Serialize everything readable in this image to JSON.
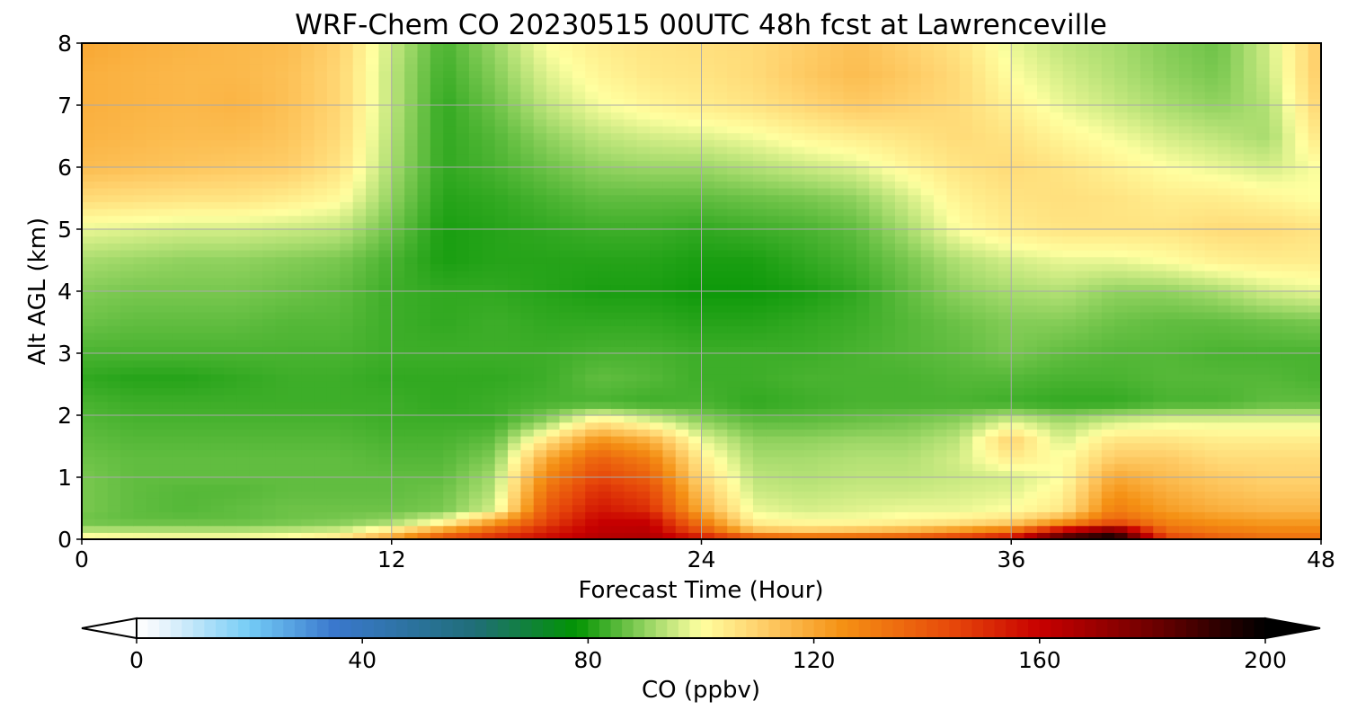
{
  "chart_data": {
    "type": "heatmap",
    "title": "WRF-Chem CO  20230515 00UTC 48h fcst at Lawrenceville",
    "xlabel": "Forecast Time (Hour)",
    "ylabel": "Alt AGL (km)",
    "xlim": [
      0,
      48
    ],
    "ylim": [
      0,
      8
    ],
    "xticks": [
      0,
      12,
      24,
      36,
      48
    ],
    "yticks": [
      0,
      1,
      2,
      3,
      4,
      5,
      6,
      7,
      8
    ],
    "grid": true,
    "colorbar": {
      "label": "CO  (ppbv)",
      "range": [
        0,
        200
      ],
      "ticks": [
        0,
        40,
        80,
        120,
        160,
        200
      ],
      "extend": "both",
      "orientation": "horizontal"
    },
    "x": [
      0,
      2,
      4,
      6,
      8,
      10,
      12,
      14,
      16,
      18,
      20,
      22,
      24,
      26,
      28,
      30,
      32,
      34,
      36,
      38,
      40,
      42,
      44,
      46,
      48
    ],
    "y": [
      0,
      0.1,
      0.3,
      0.5,
      0.8,
      1,
      1.3,
      1.6,
      1.9,
      2.2,
      2.6,
      3,
      3.5,
      4,
      4.5,
      5,
      5.5,
      6,
      6.5,
      7,
      7.5,
      8
    ],
    "z": [
      [
        106,
        104,
        103,
        103,
        104,
        110,
        125,
        146,
        152,
        158,
        165,
        166,
        160,
        154,
        150,
        150,
        152,
        158,
        165,
        190,
        200,
        150,
        140,
        135,
        135
      ],
      [
        95,
        95,
        95,
        95,
        96,
        98,
        110,
        130,
        145,
        155,
        163,
        164,
        145,
        118,
        115,
        118,
        122,
        130,
        140,
        175,
        190,
        138,
        133,
        130,
        130
      ],
      [
        87,
        86,
        86,
        86,
        87,
        88,
        90,
        98,
        120,
        145,
        160,
        160,
        130,
        102,
        100,
        100,
        102,
        104,
        108,
        120,
        138,
        128,
        124,
        122,
        122
      ],
      [
        88,
        86,
        85,
        86,
        87,
        87,
        87,
        88,
        96,
        140,
        155,
        150,
        118,
        98,
        96,
        97,
        98,
        98,
        100,
        105,
        130,
        122,
        118,
        116,
        116
      ],
      [
        88,
        86,
        85,
        85,
        86,
        86,
        86,
        87,
        93,
        133,
        150,
        144,
        112,
        95,
        94,
        95,
        95,
        96,
        97,
        102,
        124,
        118,
        114,
        112,
        112
      ],
      [
        88,
        86,
        86,
        86,
        86,
        86,
        86,
        86,
        92,
        128,
        145,
        138,
        108,
        94,
        93,
        94,
        94,
        95,
        96,
        100,
        120,
        115,
        112,
        110,
        110
      ],
      [
        87,
        86,
        86,
        86,
        86,
        86,
        85,
        85,
        89,
        120,
        138,
        130,
        104,
        92,
        92,
        93,
        93,
        96,
        104,
        100,
        112,
        112,
        108,
        108,
        108
      ],
      [
        86,
        85,
        85,
        85,
        85,
        85,
        84,
        84,
        86,
        106,
        125,
        118,
        98,
        90,
        90,
        91,
        91,
        94,
        110,
        96,
        106,
        106,
        104,
        104,
        104
      ],
      [
        85,
        84,
        84,
        84,
        84,
        84,
        83,
        83,
        83,
        90,
        105,
        98,
        90,
        86,
        86,
        87,
        88,
        90,
        97,
        92,
        96,
        98,
        98,
        98,
        98
      ],
      [
        84,
        83,
        83,
        83,
        83,
        83,
        83,
        82,
        83,
        84,
        84,
        83,
        84,
        82,
        83,
        84,
        84,
        84,
        83,
        82,
        82,
        84,
        84,
        86,
        86
      ],
      [
        82,
        81,
        81,
        82,
        83,
        83,
        82,
        82,
        82,
        83,
        86,
        85,
        83,
        83,
        84,
        84,
        84,
        85,
        85,
        84,
        84,
        85,
        85,
        85,
        84
      ],
      [
        84,
        84,
        84,
        84,
        84,
        84,
        83,
        83,
        83,
        83,
        84,
        84,
        83,
        83,
        83,
        84,
        85,
        86,
        88,
        86,
        85,
        85,
        84,
        84,
        84
      ],
      [
        87,
        86,
        86,
        86,
        85,
        85,
        83,
        82,
        83,
        82,
        82,
        82,
        81,
        81,
        82,
        83,
        85,
        87,
        89,
        89,
        87,
        86,
        86,
        87,
        88
      ],
      [
        89,
        88,
        88,
        88,
        87,
        86,
        83,
        82,
        82,
        81,
        80,
        80,
        79,
        79,
        80,
        82,
        86,
        90,
        92,
        93,
        90,
        90,
        92,
        96,
        98
      ],
      [
        92,
        91,
        90,
        90,
        89,
        88,
        84,
        80,
        81,
        81,
        81,
        81,
        80,
        80,
        82,
        84,
        88,
        93,
        96,
        98,
        98,
        100,
        103,
        104,
        104
      ],
      [
        98,
        97,
        96,
        96,
        95,
        94,
        87,
        80,
        81,
        82,
        83,
        83,
        82,
        83,
        84,
        86,
        92,
        100,
        104,
        106,
        106,
        106,
        108,
        108,
        106
      ],
      [
        108,
        107,
        106,
        106,
        104,
        101,
        90,
        81,
        82,
        84,
        86,
        86,
        86,
        87,
        88,
        90,
        96,
        103,
        106,
        107,
        106,
        104,
        104,
        102,
        100
      ],
      [
        115,
        114,
        113,
        112,
        111,
        106,
        92,
        82,
        84,
        87,
        90,
        91,
        91,
        93,
        95,
        97,
        102,
        106,
        108,
        106,
        103,
        100,
        98,
        96,
        100
      ],
      [
        117,
        116,
        115,
        115,
        113,
        108,
        93,
        82,
        85,
        90,
        94,
        96,
        97,
        99,
        102,
        104,
        106,
        108,
        106,
        102,
        99,
        96,
        94,
        92,
        106
      ],
      [
        118,
        117,
        116,
        117,
        114,
        109,
        94,
        82,
        87,
        94,
        99,
        102,
        104,
        106,
        109,
        112,
        110,
        108,
        103,
        98,
        95,
        92,
        90,
        93,
        110
      ],
      [
        118,
        117,
        116,
        116,
        114,
        109,
        94,
        83,
        89,
        97,
        102,
        105,
        106,
        108,
        112,
        115,
        112,
        108,
        100,
        96,
        93,
        90,
        88,
        95,
        112
      ],
      [
        120,
        118,
        117,
        116,
        115,
        110,
        95,
        84,
        91,
        100,
        104,
        106,
        107,
        108,
        111,
        114,
        110,
        106,
        98,
        94,
        92,
        89,
        87,
        96,
        112
      ]
    ]
  }
}
